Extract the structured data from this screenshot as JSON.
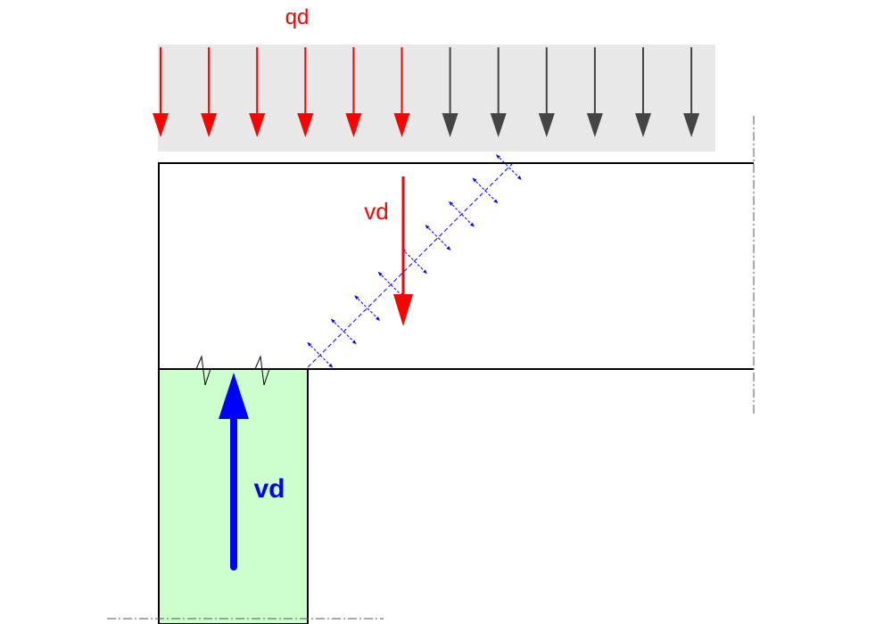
{
  "labels": {
    "load": "qd",
    "shear_force": "vd",
    "support_reaction": "vd"
  }
}
